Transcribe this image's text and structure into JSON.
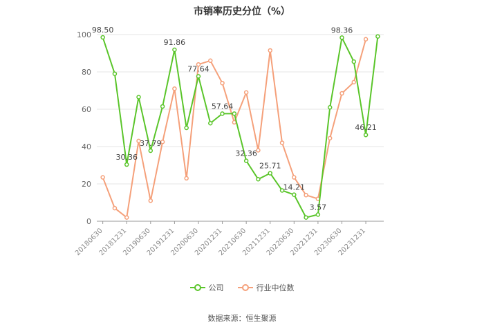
{
  "chart_data": {
    "type": "line",
    "title": "市销率历史分位（%）",
    "ylim": [
      0,
      100
    ],
    "yticks": [
      0,
      20,
      40,
      60,
      80,
      100
    ],
    "x": [
      "20180630",
      "20180930",
      "20181231",
      "20190331",
      "20190630",
      "20190930",
      "20191231",
      "20200331",
      "20200630",
      "20200930",
      "20201231",
      "20210331",
      "20210630",
      "20210930",
      "20211231",
      "20220331",
      "20220630",
      "20220930",
      "20221231",
      "20230331",
      "20230630",
      "20230930",
      "20231231",
      "20240331"
    ],
    "xtick_labels": [
      "20180630",
      "20181231",
      "20190630",
      "20191231",
      "20200630",
      "20201231",
      "20210630",
      "20211231",
      "20220630",
      "20221231",
      "20230630",
      "20231231"
    ],
    "series": [
      {
        "name": "公司",
        "color": "#5ac52a",
        "values": [
          98.5,
          79,
          30.36,
          66.5,
          37.79,
          61.5,
          91.86,
          50,
          77.64,
          52.5,
          57.64,
          57.64,
          32.36,
          22.5,
          25.71,
          16.5,
          14.21,
          2,
          3.57,
          61,
          98.36,
          85.5,
          46.21,
          99
        ],
        "labels": {
          "0": "98.50",
          "2": "30.36",
          "4": "37.79",
          "6": "91.86",
          "8": "77.64",
          "10": "57.64",
          "12": "32.36",
          "14": "25.71",
          "16": "14.21",
          "18": "3.57",
          "20": "98.36",
          "22": "46.21"
        }
      },
      {
        "name": "行业中位数",
        "color": "#f5a07a",
        "values": [
          23.5,
          7,
          2,
          43,
          11,
          42.5,
          71,
          23,
          84,
          86,
          74,
          53,
          69,
          38,
          91.5,
          42,
          23.5,
          14,
          12,
          44.5,
          68.5,
          74.5,
          97.5,
          null
        ]
      }
    ]
  },
  "legend": {
    "company": "公司",
    "industry": "行业中位数"
  },
  "source": "数据来源：恒生聚源"
}
